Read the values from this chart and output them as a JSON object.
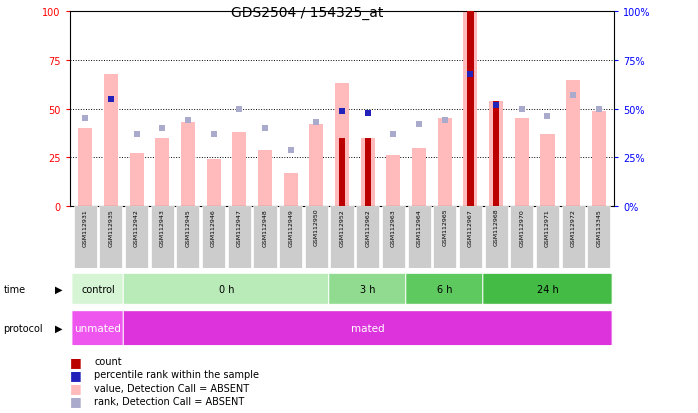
{
  "title": "GDS2504 / 154325_at",
  "samples": [
    "GSM112931",
    "GSM112935",
    "GSM112942",
    "GSM112943",
    "GSM112945",
    "GSM112946",
    "GSM112947",
    "GSM112948",
    "GSM112949",
    "GSM112950",
    "GSM112952",
    "GSM112962",
    "GSM112963",
    "GSM112964",
    "GSM112965",
    "GSM112967",
    "GSM112968",
    "GSM112970",
    "GSM112971",
    "GSM112972",
    "GSM113345"
  ],
  "pink_bar_values": [
    40,
    68,
    27,
    35,
    43,
    24,
    38,
    29,
    17,
    42,
    63,
    35,
    26,
    30,
    45,
    100,
    54,
    45,
    37,
    65,
    49
  ],
  "red_bar_values": [
    0,
    0,
    0,
    0,
    0,
    0,
    0,
    0,
    0,
    0,
    35,
    35,
    0,
    0,
    0,
    100,
    54,
    0,
    0,
    0,
    0
  ],
  "blue_square_values": [
    45,
    55,
    37,
    40,
    44,
    37,
    50,
    40,
    29,
    43,
    49,
    48,
    37,
    42,
    44,
    68,
    52,
    50,
    46,
    57,
    50
  ],
  "blue_dark_indices": [
    1,
    10,
    11,
    15,
    16
  ],
  "time_groups": [
    {
      "label": "control",
      "start": 0,
      "end": 2,
      "color": "#d5f5d5"
    },
    {
      "label": "0 h",
      "start": 2,
      "end": 10,
      "color": "#b8ebb8"
    },
    {
      "label": "3 h",
      "start": 10,
      "end": 13,
      "color": "#90db90"
    },
    {
      "label": "6 h",
      "start": 13,
      "end": 16,
      "color": "#5ec95e"
    },
    {
      "label": "24 h",
      "start": 16,
      "end": 21,
      "color": "#44bb44"
    }
  ],
  "protocol_groups": [
    {
      "label": "unmated",
      "start": 0,
      "end": 2,
      "color": "#ee66ee"
    },
    {
      "label": "mated",
      "start": 2,
      "end": 21,
      "color": "#dd44dd"
    }
  ],
  "pink_color": "#ffbbbb",
  "red_color": "#bb0000",
  "blue_color": "#2222bb",
  "light_blue_color": "#aaaacc",
  "ylim": [
    0,
    100
  ],
  "yticks": [
    0,
    25,
    50,
    75,
    100
  ]
}
